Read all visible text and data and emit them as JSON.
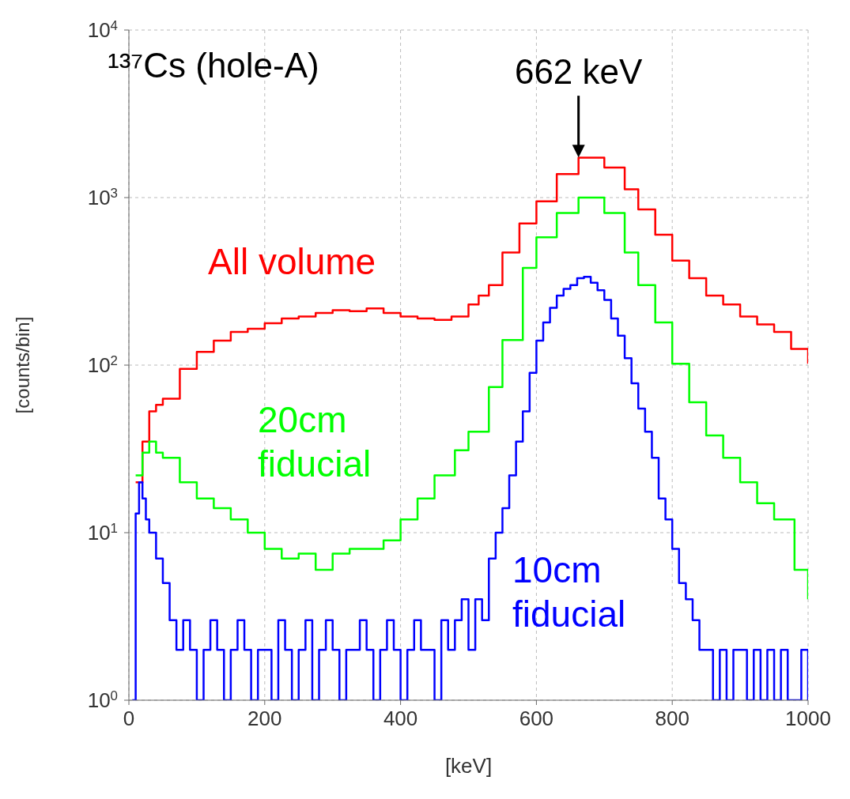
{
  "chart_data": {
    "type": "step",
    "xlabel": "[keV]",
    "ylabel": "[counts/bin]",
    "log": "y",
    "grid": true,
    "xlim": [
      0,
      1000
    ],
    "xticks": [
      0,
      200,
      400,
      600,
      800,
      1000
    ],
    "ylim": [
      1,
      10000
    ],
    "yticks": [
      {
        "value": 1,
        "label": "10$^{0}$"
      },
      {
        "value": 10,
        "label": "10$^{1}$"
      },
      {
        "value": 100,
        "label": "10$^{2}$"
      },
      {
        "value": 1000,
        "label": "10$^{3}$"
      },
      {
        "value": 10000,
        "label": "10$^{4}$"
      }
    ],
    "annotations": [
      "¹³⁷Cs (hole-A)",
      {
        "text": "662 keV",
        "x": 662,
        "y": 1700
      }
    ],
    "series": [
      {
        "name": "All volume",
        "color": "#ff0000",
        "x": [
          10,
          20,
          30,
          40,
          50,
          75,
          100,
          125,
          150,
          175,
          200,
          225,
          250,
          275,
          300,
          325,
          350,
          375,
          400,
          425,
          450,
          475,
          500,
          515,
          530,
          550,
          575,
          600,
          630,
          662,
          700,
          730,
          750,
          775,
          800,
          825,
          850,
          875,
          900,
          925,
          950,
          975,
          1000
        ],
        "values": [
          20,
          35,
          53,
          58,
          63,
          95,
          120,
          140,
          158,
          165,
          178,
          190,
          195,
          205,
          213,
          210,
          218,
          205,
          195,
          190,
          186,
          195,
          230,
          260,
          300,
          470,
          700,
          950,
          1380,
          1730,
          1510,
          1120,
          850,
          600,
          420,
          330,
          260,
          230,
          195,
          175,
          158,
          125,
          102
        ]
      },
      {
        "name": "20cm fiducial",
        "color": "#00ff00",
        "x": [
          10,
          20,
          30,
          40,
          50,
          75,
          100,
          125,
          150,
          175,
          200,
          225,
          250,
          275,
          300,
          325,
          350,
          375,
          400,
          425,
          450,
          480,
          500,
          530,
          550,
          580,
          600,
          630,
          662,
          700,
          730,
          750,
          775,
          800,
          825,
          850,
          875,
          900,
          925,
          950,
          980,
          1000
        ],
        "values": [
          22,
          30,
          35,
          30,
          28,
          20,
          16,
          14,
          12,
          10,
          8,
          7,
          7.5,
          6,
          7.5,
          8,
          8,
          9,
          12,
          16,
          22,
          31,
          40,
          74,
          141,
          380,
          580,
          810,
          1000,
          810,
          470,
          300,
          180,
          102,
          60,
          38,
          28,
          20,
          15,
          12,
          6,
          4
        ]
      },
      {
        "name": "10cm fiducial",
        "color": "#0000ff",
        "x": [
          5,
          10,
          15,
          20,
          25,
          30,
          40,
          50,
          60,
          70,
          80,
          90,
          100,
          110,
          120,
          130,
          140,
          150,
          160,
          170,
          180,
          190,
          200,
          210,
          220,
          230,
          240,
          250,
          260,
          270,
          280,
          290,
          300,
          310,
          320,
          330,
          340,
          350,
          360,
          370,
          380,
          390,
          400,
          410,
          420,
          430,
          440,
          450,
          460,
          470,
          480,
          490,
          500,
          510,
          520,
          530,
          540,
          550,
          560,
          570,
          580,
          590,
          600,
          610,
          620,
          630,
          640,
          650,
          660,
          670,
          680,
          690,
          700,
          710,
          720,
          730,
          740,
          750,
          760,
          770,
          780,
          790,
          800,
          810,
          820,
          830,
          840,
          850,
          860,
          870,
          880,
          890,
          900,
          910,
          920,
          930,
          940,
          950,
          960,
          970,
          980,
          990,
          1000
        ],
        "values": [
          1,
          13,
          20,
          16,
          12,
          10,
          7,
          5,
          3,
          2,
          3,
          2,
          1,
          2,
          3,
          2,
          1,
          2,
          3,
          2,
          1,
          2,
          2,
          1,
          3,
          2,
          1,
          2,
          3,
          1,
          2,
          3,
          2,
          1,
          2,
          2,
          3,
          2,
          1,
          2,
          3,
          2,
          1,
          2,
          3,
          2,
          2,
          1,
          3,
          2,
          3,
          4,
          2,
          4,
          3,
          7,
          10,
          14,
          22,
          35,
          53,
          90,
          140,
          180,
          220,
          260,
          285,
          300,
          330,
          337,
          310,
          280,
          245,
          190,
          150,
          110,
          78,
          55,
          40,
          28,
          16,
          12,
          8,
          5,
          4,
          3,
          2,
          2,
          1,
          2,
          1,
          2,
          2,
          1,
          2,
          1,
          2,
          1,
          2,
          1,
          1,
          2,
          1
        ]
      }
    ]
  }
}
